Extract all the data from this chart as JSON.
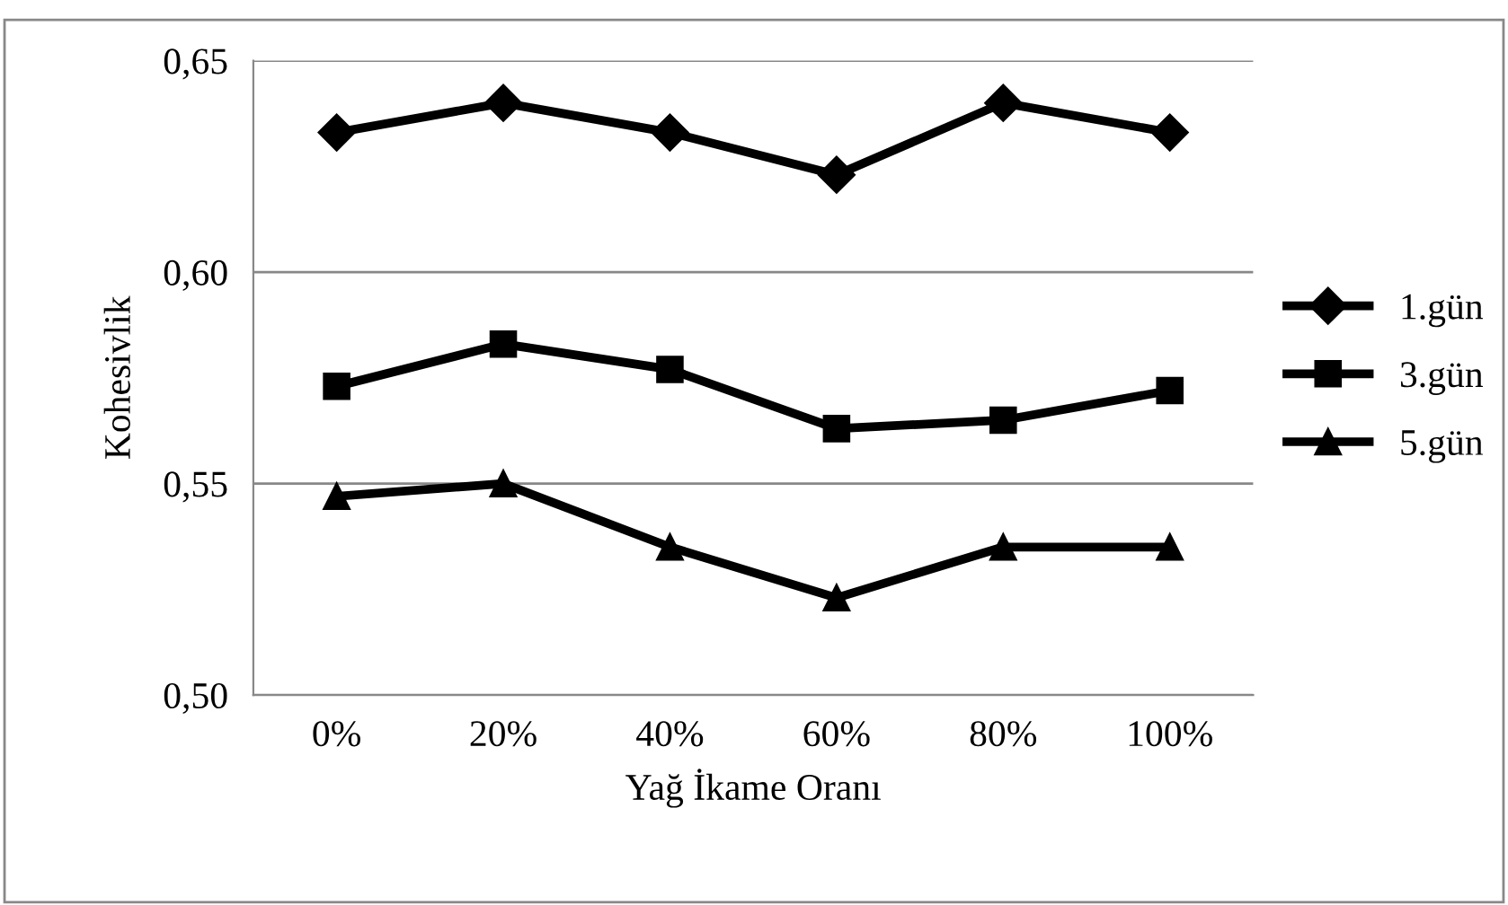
{
  "chart_data": {
    "type": "line",
    "xlabel": "Yağ İkame Oranı",
    "ylabel": "Kohesivlik",
    "categories": [
      "0%",
      "20%",
      "40%",
      "60%",
      "80%",
      "100%"
    ],
    "series": [
      {
        "name": "1.gün",
        "color": "#000000",
        "marker": "diamond",
        "values": [
          0.633,
          0.64,
          0.633,
          0.623,
          0.64,
          0.633
        ]
      },
      {
        "name": "3.gün",
        "color": "#000000",
        "marker": "square",
        "values": [
          0.573,
          0.583,
          0.577,
          0.563,
          0.565,
          0.572
        ]
      },
      {
        "name": "5.gün",
        "color": "#000000",
        "marker": "triangle",
        "values": [
          0.547,
          0.55,
          0.535,
          0.523,
          0.535,
          0.535
        ]
      }
    ],
    "ylim": [
      0.5,
      0.65
    ],
    "yticks": [
      {
        "value": 0.5,
        "label": "0,50"
      },
      {
        "value": 0.55,
        "label": "0,55"
      },
      {
        "value": 0.6,
        "label": "0,60"
      },
      {
        "value": 0.65,
        "label": "0,65"
      }
    ],
    "grid": "y",
    "legend": "right",
    "line_style": "solid"
  }
}
